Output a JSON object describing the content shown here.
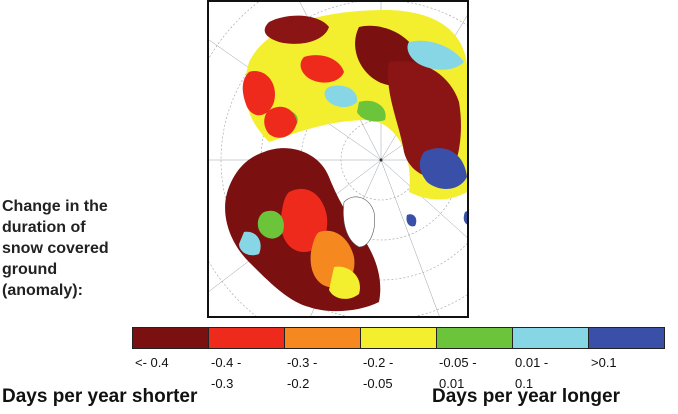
{
  "caption_lines": [
    "Change in the",
    "duration of",
    "snow covered",
    "ground",
    "(anomaly):"
  ],
  "legend": [
    {
      "color": "#7a1010",
      "label_lines": [
        "<- 0.4"
      ]
    },
    {
      "color": "#ee2a1c",
      "label_lines": [
        "-0.4 -",
        "-0.3"
      ]
    },
    {
      "color": "#f5881e",
      "label_lines": [
        "-0.3 -",
        "-0.2"
      ]
    },
    {
      "color": "#f3ee2e",
      "label_lines": [
        "-0.2 -",
        "-0.05"
      ]
    },
    {
      "color": "#6cc43a",
      "label_lines": [
        "-0.05 -",
        "0.01"
      ]
    },
    {
      "color": "#86d6e6",
      "label_lines": [
        "0.01 -",
        "0.1"
      ]
    },
    {
      "color": "#3a50a8",
      "label_lines": [
        ">0.1"
      ]
    }
  ],
  "footer": {
    "left": "Days per year shorter",
    "right": "Days per year longer"
  }
}
